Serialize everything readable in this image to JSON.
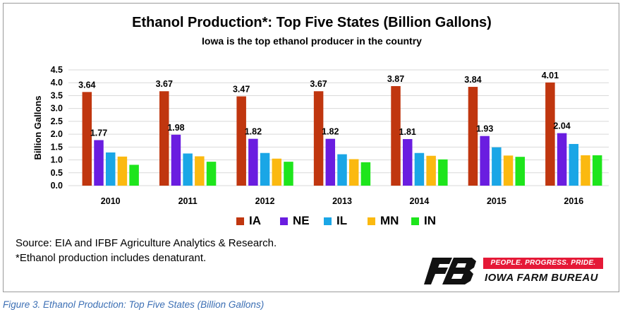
{
  "chart_data": {
    "type": "bar",
    "title": "Ethanol Production*: Top Five States (Billion Gallons)",
    "subtitle": "Iowa is the top ethanol producer in the country",
    "ylabel": "Billion Gallons",
    "xlabel": "",
    "ylim": [
      0,
      4.5
    ],
    "yticks": [
      "0.0",
      "0.5",
      "1.0",
      "1.5",
      "2.0",
      "2.5",
      "3.0",
      "3.5",
      "4.0",
      "4.5"
    ],
    "grid": true,
    "legend_position": "bottom",
    "categories": [
      "2010",
      "2011",
      "2012",
      "2013",
      "2014",
      "2015",
      "2016"
    ],
    "series": [
      {
        "name": "IA",
        "color": "#c0360f",
        "values": [
          3.64,
          3.67,
          3.47,
          3.67,
          3.87,
          3.84,
          4.01
        ],
        "labels": [
          "3.64",
          "3.67",
          "3.47",
          "3.67",
          "3.87",
          "3.84",
          "4.01"
        ]
      },
      {
        "name": "NE",
        "color": "#6a1de0",
        "values": [
          1.77,
          1.98,
          1.82,
          1.82,
          1.81,
          1.93,
          2.04
        ],
        "labels": [
          "1.77",
          "1.98",
          "1.82",
          "1.82",
          "1.81",
          "1.93",
          "2.04"
        ]
      },
      {
        "name": "IL",
        "color": "#1aa6e6",
        "values": [
          1.29,
          1.25,
          1.27,
          1.22,
          1.27,
          1.49,
          1.62
        ]
      },
      {
        "name": "MN",
        "color": "#fbb910",
        "values": [
          1.13,
          1.14,
          1.05,
          1.03,
          1.16,
          1.17,
          1.18
        ]
      },
      {
        "name": "IN",
        "color": "#1ee51c",
        "values": [
          0.81,
          0.93,
          0.93,
          0.91,
          1.02,
          1.12,
          1.18
        ]
      }
    ]
  },
  "source_lines": [
    "Source:  EIA and IFBF Agriculture Analytics & Research.",
    "*Ethanol production includes denaturant."
  ],
  "logo": {
    "slogan": "PEOPLE. PROGRESS. PRIDE.",
    "brand": "IOWA FARM BUREAU",
    "color": "#e51937"
  },
  "caption": "Figure 3. Ethanol Production: Top Five States (Billion Gallons)"
}
